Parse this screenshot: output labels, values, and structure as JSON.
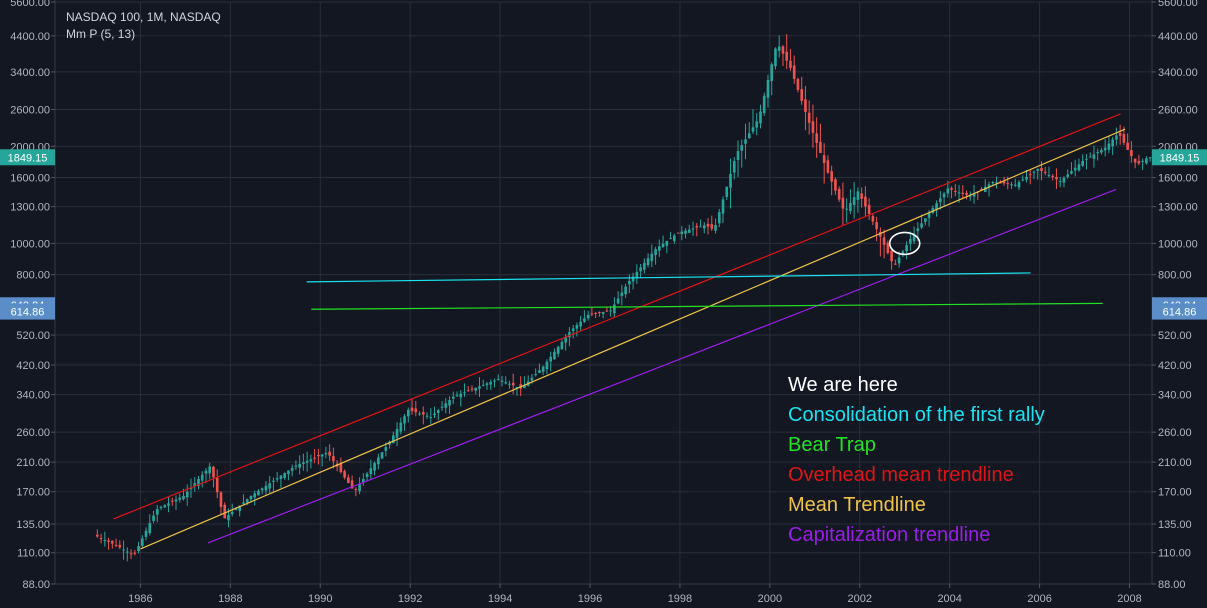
{
  "header": {
    "title": "NASDAQ 100, 1M, NASDAQ",
    "indicator": "Mm P (5, 13)"
  },
  "annotations": [
    {
      "text": "We are here",
      "color": "#ffffff"
    },
    {
      "text": "Consolidation of the first rally",
      "color": "#19e3f0"
    },
    {
      "text": "Bear Trap",
      "color": "#22e022"
    },
    {
      "text": "Overhead mean trendline",
      "color": "#e01414"
    },
    {
      "text": "Mean Trendline",
      "color": "#f0c24a"
    },
    {
      "text": "Capitalization trendline",
      "color": "#9b1ee8"
    }
  ],
  "price_labels": [
    {
      "text": "1849.15",
      "value": 1849.15,
      "color": "#26a69a"
    },
    {
      "text": "643.24",
      "value": 643.24,
      "color": "#5b8ec9"
    },
    {
      "text": "614.86",
      "value": 614.86,
      "color": "#5b8ec9"
    }
  ],
  "chart_data": {
    "type": "candlestick",
    "scale": "log",
    "ylim": [
      88,
      5600
    ],
    "xlim": [
      1984.1,
      2008.5
    ],
    "y_ticks": [
      "5600.00",
      "4400.00",
      "3400.00",
      "2600.00",
      "2000.00",
      "1600.00",
      "1300.00",
      "1000.00",
      "800.00",
      "520.00",
      "420.00",
      "340.00",
      "260.00",
      "210.00",
      "170.00",
      "135.00",
      "110.00",
      "88.00"
    ],
    "x_ticks": [
      "1986",
      "1988",
      "1990",
      "1992",
      "1994",
      "1996",
      "1998",
      "2000",
      "2002",
      "2004",
      "2006",
      "2008"
    ],
    "colors": {
      "up": "#26a69a",
      "down": "#ef5350",
      "grid": "#2a2e39",
      "text": "#b2b5be"
    },
    "price_path": [
      [
        1985.0,
        125
      ],
      [
        1985.5,
        116
      ],
      [
        1985.9,
        108
      ],
      [
        1986.4,
        150
      ],
      [
        1987.0,
        165
      ],
      [
        1987.6,
        205
      ],
      [
        1987.9,
        140
      ],
      [
        1988.5,
        165
      ],
      [
        1989.5,
        205
      ],
      [
        1990.2,
        225
      ],
      [
        1990.8,
        170
      ],
      [
        1991.6,
        245
      ],
      [
        1992.0,
        305
      ],
      [
        1992.5,
        290
      ],
      [
        1993.0,
        335
      ],
      [
        1994.0,
        380
      ],
      [
        1994.5,
        355
      ],
      [
        1995.0,
        415
      ],
      [
        1995.6,
        535
      ],
      [
        1996.0,
        600
      ],
      [
        1996.5,
        620
      ],
      [
        1996.9,
        760
      ],
      [
        1997.5,
        960
      ],
      [
        1998.0,
        1080
      ],
      [
        1998.6,
        1140
      ],
      [
        1998.8,
        1100
      ],
      [
        1999.3,
        1900
      ],
      [
        1999.8,
        2450
      ],
      [
        2000.2,
        4200
      ],
      [
        2000.5,
        3500
      ],
      [
        2000.9,
        2400
      ],
      [
        2001.3,
        1700
      ],
      [
        2001.7,
        1250
      ],
      [
        2002.0,
        1450
      ],
      [
        2002.5,
        1050
      ],
      [
        2002.8,
        850
      ],
      [
        2003.2,
        1050
      ],
      [
        2003.6,
        1250
      ],
      [
        2004.0,
        1480
      ],
      [
        2004.5,
        1400
      ],
      [
        2005.0,
        1550
      ],
      [
        2005.5,
        1520
      ],
      [
        2006.0,
        1700
      ],
      [
        2006.5,
        1560
      ],
      [
        2007.0,
        1800
      ],
      [
        2007.5,
        1980
      ],
      [
        2007.8,
        2200
      ],
      [
        2008.0,
        1950
      ],
      [
        2008.2,
        1750
      ],
      [
        2008.45,
        1849.15
      ]
    ],
    "lines": [
      {
        "name": "Overhead mean trendline",
        "color": "#e01414",
        "from": [
          1985.4,
          140
        ],
        "to": [
          2007.8,
          2520
        ]
      },
      {
        "name": "Mean Trendline",
        "color": "#f0c24a",
        "from": [
          1986.0,
          113
        ],
        "to": [
          2007.9,
          2260
        ]
      },
      {
        "name": "Capitalization trendline",
        "color": "#9b1ee8",
        "from": [
          1987.5,
          118
        ],
        "to": [
          2007.7,
          1470
        ]
      },
      {
        "name": "Consolidation of the first rally",
        "color": "#19e3f0",
        "from": [
          1989.7,
          760
        ],
        "to": [
          2005.8,
          810
        ]
      },
      {
        "name": "Bear Trap",
        "color": "#22e022",
        "from": [
          1989.8,
          625
        ],
        "to": [
          2007.4,
          652
        ]
      }
    ],
    "ellipse": {
      "center": [
        2003.0,
        1000
      ],
      "color": "#ffffff"
    }
  }
}
